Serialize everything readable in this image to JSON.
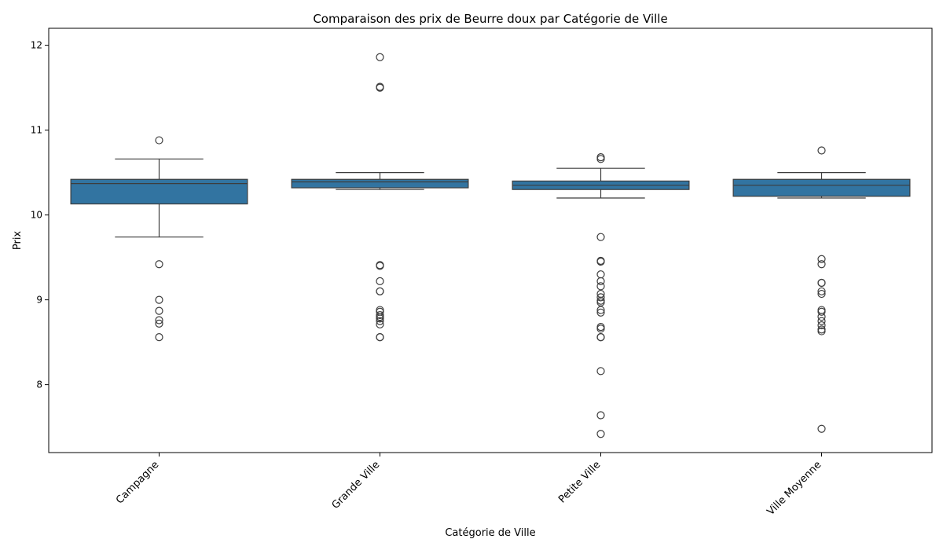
{
  "chart_data": {
    "type": "box",
    "title": "Comparaison des prix de Beurre doux par Catégorie de Ville",
    "xlabel": "Catégorie de Ville",
    "ylabel": "Prix",
    "ylim": [
      7.2,
      12.2
    ],
    "yticks": [
      8,
      9,
      10,
      11,
      12
    ],
    "grid": false,
    "box_color": "#3274a1",
    "line_color": "#3d3d3d",
    "categories": [
      "Campagne",
      "Grande Ville",
      "Petite Ville",
      "Ville Moyenne"
    ],
    "boxes": [
      {
        "category": "Campagne",
        "q1": 10.13,
        "median": 10.37,
        "q3": 10.42,
        "whisker_low": 9.74,
        "whisker_high": 10.66,
        "outliers": [
          10.88,
          9.42,
          9.0,
          8.87,
          8.76,
          8.72,
          8.56
        ]
      },
      {
        "category": "Grande Ville",
        "q1": 10.32,
        "median": 10.39,
        "q3": 10.42,
        "whisker_low": 10.3,
        "whisker_high": 10.5,
        "outliers": [
          11.86,
          11.51,
          11.5,
          9.41,
          9.4,
          9.22,
          9.1,
          9.1,
          8.88,
          8.86,
          8.82,
          8.8,
          8.78,
          8.75,
          8.71,
          8.56,
          8.56
        ]
      },
      {
        "category": "Petite Ville",
        "q1": 10.3,
        "median": 10.35,
        "q3": 10.4,
        "whisker_low": 10.2,
        "whisker_high": 10.55,
        "outliers": [
          10.68,
          10.66,
          9.74,
          9.46,
          9.45,
          9.3,
          9.22,
          9.16,
          9.07,
          9.03,
          8.99,
          8.97,
          8.88,
          8.85,
          8.68,
          8.66,
          8.56,
          8.56,
          8.16,
          7.64,
          7.42
        ]
      },
      {
        "category": "Ville Moyenne",
        "q1": 10.22,
        "median": 10.35,
        "q3": 10.42,
        "whisker_low": 10.2,
        "whisker_high": 10.5,
        "outliers": [
          10.76,
          9.48,
          9.42,
          9.2,
          9.2,
          9.1,
          9.07,
          8.88,
          8.86,
          8.8,
          8.75,
          8.7,
          8.65,
          8.63,
          7.48
        ]
      }
    ]
  }
}
